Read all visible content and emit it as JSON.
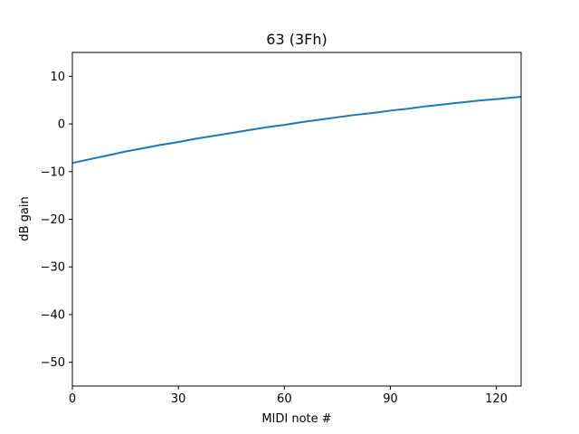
{
  "chart_data": {
    "type": "line",
    "title": "63 (3Fh)",
    "xlabel": "MIDI note #",
    "ylabel": "dB gain",
    "xlim": [
      0,
      127
    ],
    "ylim": [
      -55,
      15
    ],
    "xticks": [
      0,
      30,
      60,
      90,
      120
    ],
    "yticks": [
      10,
      0,
      -10,
      -20,
      -30,
      -40,
      -50
    ],
    "xtick_labels": [
      "0",
      "30",
      "60",
      "90",
      "120"
    ],
    "ytick_labels": [
      "10",
      "0",
      "−10",
      "−20",
      "−30",
      "−40",
      "−50"
    ],
    "grid": false,
    "series": [
      {
        "color": "#1f77b4",
        "x": [
          0,
          5,
          10,
          15,
          20,
          25,
          30,
          35,
          40,
          45,
          50,
          55,
          60,
          65,
          70,
          75,
          80,
          85,
          90,
          95,
          100,
          105,
          110,
          115,
          120,
          127
        ],
        "y": [
          -8.2,
          -7.4,
          -6.6,
          -5.8,
          -5.1,
          -4.4,
          -3.8,
          -3.1,
          -2.5,
          -1.9,
          -1.3,
          -0.7,
          -0.2,
          0.4,
          0.9,
          1.4,
          1.9,
          2.3,
          2.8,
          3.2,
          3.7,
          4.1,
          4.5,
          4.9,
          5.2,
          5.7
        ]
      }
    ]
  }
}
